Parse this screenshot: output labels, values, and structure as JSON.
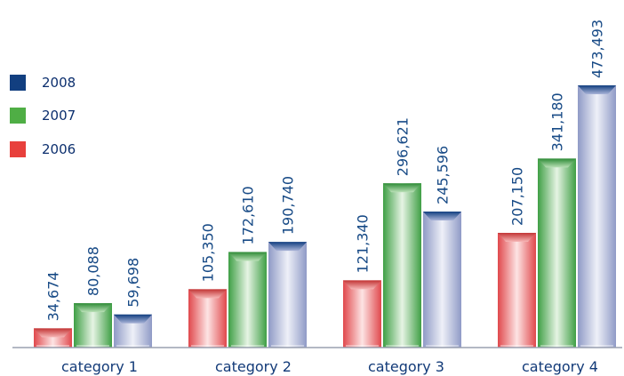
{
  "chart_data": {
    "type": "bar",
    "title": "",
    "xlabel": "",
    "ylabel": "",
    "categories": [
      "category 1",
      "category 2",
      "category 3",
      "category 4"
    ],
    "series": [
      {
        "name": "2006",
        "values": [
          "34,674",
          "105,350",
          "121,340",
          "207,150"
        ],
        "numeric": [
          34674,
          105350,
          121340,
          207150
        ]
      },
      {
        "name": "2007",
        "values": [
          "80,088",
          "172,610",
          "296,621",
          "341,180"
        ],
        "numeric": [
          80088,
          172610,
          296621,
          341180
        ]
      },
      {
        "name": "2008",
        "values": [
          "59,698",
          "190,740",
          "245,596",
          "473,493"
        ],
        "numeric": [
          59698,
          190740,
          245596,
          473493
        ]
      }
    ],
    "ylim": [
      0,
      473493
    ],
    "grid": false,
    "legend_position": "left",
    "legend_order": [
      "2008",
      "2007",
      "2006"
    ],
    "colors": {
      "2006": "#e8403c",
      "2007": "#4fae45",
      "2008": "#123f80"
    }
  }
}
